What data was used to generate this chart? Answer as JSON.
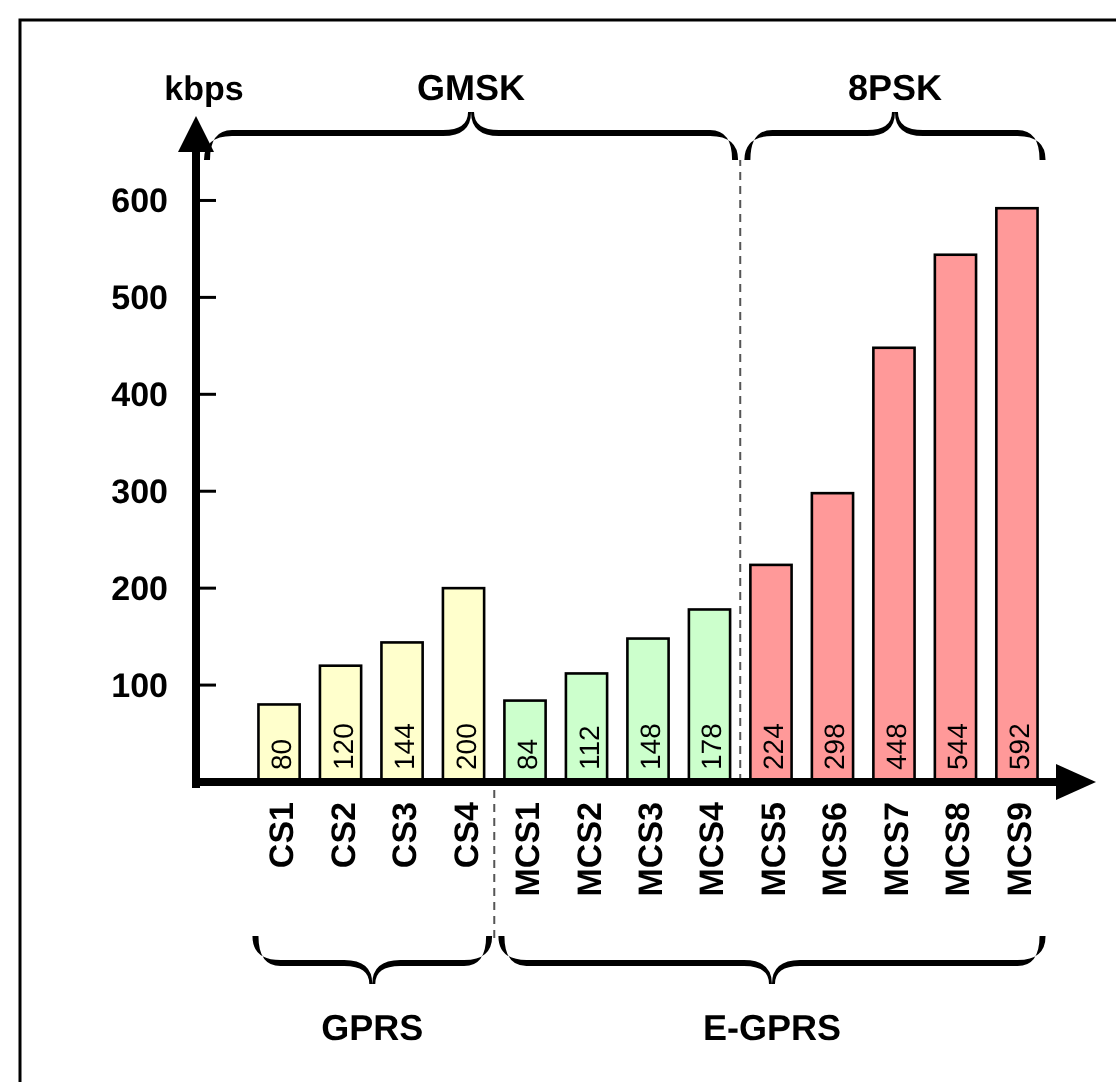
{
  "chart_data": {
    "type": "bar",
    "ylabel": "kbps",
    "categories": [
      "CS1",
      "CS2",
      "CS3",
      "CS4",
      "MCS1",
      "MCS2",
      "MCS3",
      "MCS4",
      "MCS5",
      "MCS6",
      "MCS7",
      "MCS8",
      "MCS9"
    ],
    "values": [
      80,
      120,
      144,
      200,
      84,
      112,
      148,
      178,
      224,
      298,
      448,
      544,
      592
    ],
    "colors": [
      "#ffffcc",
      "#ffffcc",
      "#ffffcc",
      "#ffffcc",
      "#ccffcc",
      "#ccffcc",
      "#ccffcc",
      "#ccffcc",
      "#ff9999",
      "#ff9999",
      "#ff9999",
      "#ff9999",
      "#ff9999"
    ],
    "data_labels": true,
    "ylim": [
      0,
      650
    ],
    "yticks": [
      100,
      200,
      300,
      400,
      500,
      600
    ],
    "annotations": [
      "GMSK",
      "8PSK",
      "GPRS",
      "E-GPRS"
    ]
  }
}
